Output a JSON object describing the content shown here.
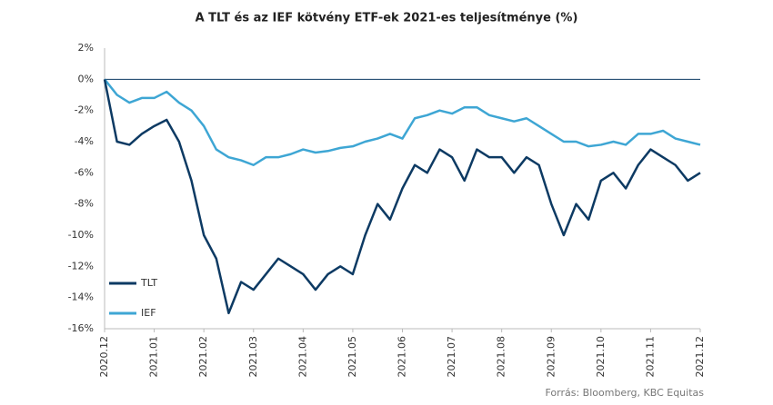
{
  "chart_data": {
    "type": "line",
    "title": "A TLT és az IEF kötvény ETF-ek 2021-es teljesítménye (%)",
    "source": "Forrás: Bloomberg, KBC Equitas",
    "x": [
      0,
      0.25,
      0.5,
      0.75,
      1,
      1.25,
      1.5,
      1.75,
      2,
      2.25,
      2.5,
      2.75,
      3,
      3.25,
      3.5,
      3.75,
      4,
      4.25,
      4.5,
      4.75,
      5,
      5.25,
      5.5,
      5.75,
      6,
      6.25,
      6.5,
      6.75,
      7,
      7.25,
      7.5,
      7.75,
      8,
      8.25,
      8.5,
      8.75,
      9,
      9.25,
      9.5,
      9.75,
      10,
      10.25,
      10.5,
      10.75,
      11,
      11.25,
      11.5,
      11.75,
      12
    ],
    "series": [
      {
        "name": "TLT",
        "color": "#0d3a63",
        "values": [
          0,
          -4,
          -4.2,
          -3.5,
          -3,
          -2.6,
          -4,
          -6.5,
          -10,
          -11.5,
          -15,
          -13,
          -13.5,
          -12.5,
          -11.5,
          -12,
          -12.5,
          -13.5,
          -12.5,
          -12,
          -12.5,
          -10,
          -8,
          -9,
          -7,
          -5.5,
          -6,
          -4.5,
          -5,
          -6.5,
          -4.5,
          -5,
          -5,
          -6,
          -5,
          -5.5,
          -8,
          -10,
          -8,
          -9,
          -6.5,
          -6,
          -7,
          -5.5,
          -4.5,
          -5,
          -5.5,
          -6.5,
          -6
        ]
      },
      {
        "name": "IEF",
        "color": "#3ea6d4",
        "values": [
          0,
          -1,
          -1.5,
          -1.2,
          -1.2,
          -0.8,
          -1.5,
          -2,
          -3,
          -4.5,
          -5,
          -5.2,
          -5.5,
          -5,
          -5,
          -4.8,
          -4.5,
          -4.7,
          -4.6,
          -4.4,
          -4.3,
          -4,
          -3.8,
          -3.5,
          -3.8,
          -2.5,
          -2.3,
          -2,
          -2.2,
          -1.8,
          -1.8,
          -2.3,
          -2.5,
          -2.7,
          -2.5,
          -3,
          -3.5,
          -4,
          -4,
          -4.3,
          -4.2,
          -4,
          -4.2,
          -3.5,
          -3.5,
          -3.3,
          -3.8,
          -4,
          -4.2
        ]
      }
    ],
    "xlim": [
      0,
      12
    ],
    "xticks": [
      {
        "value": 0,
        "label": "2020.12"
      },
      {
        "value": 1,
        "label": "2021.01"
      },
      {
        "value": 2,
        "label": "2021.02"
      },
      {
        "value": 3,
        "label": "2021.03"
      },
      {
        "value": 4,
        "label": "2021.04"
      },
      {
        "value": 5,
        "label": "2021.05"
      },
      {
        "value": 6,
        "label": "2021.06"
      },
      {
        "value": 7,
        "label": "2021.07"
      },
      {
        "value": 8,
        "label": "2021.08"
      },
      {
        "value": 9,
        "label": "2021.09"
      },
      {
        "value": 10,
        "label": "2021.10"
      },
      {
        "value": 11,
        "label": "2021.11"
      },
      {
        "value": 12,
        "label": "2021.12"
      }
    ],
    "ylim": [
      -16,
      2
    ],
    "yticks": [
      {
        "value": 2,
        "label": "2%"
      },
      {
        "value": 0,
        "label": "0%"
      },
      {
        "value": -2,
        "label": "-2%"
      },
      {
        "value": -4,
        "label": "-4%"
      },
      {
        "value": -6,
        "label": "-6%"
      },
      {
        "value": -8,
        "label": "-8%"
      },
      {
        "value": -10,
        "label": "-10%"
      },
      {
        "value": -12,
        "label": "-12%"
      },
      {
        "value": -14,
        "label": "-14%"
      },
      {
        "value": -16,
        "label": "-16%"
      }
    ],
    "legend": "lower left"
  }
}
